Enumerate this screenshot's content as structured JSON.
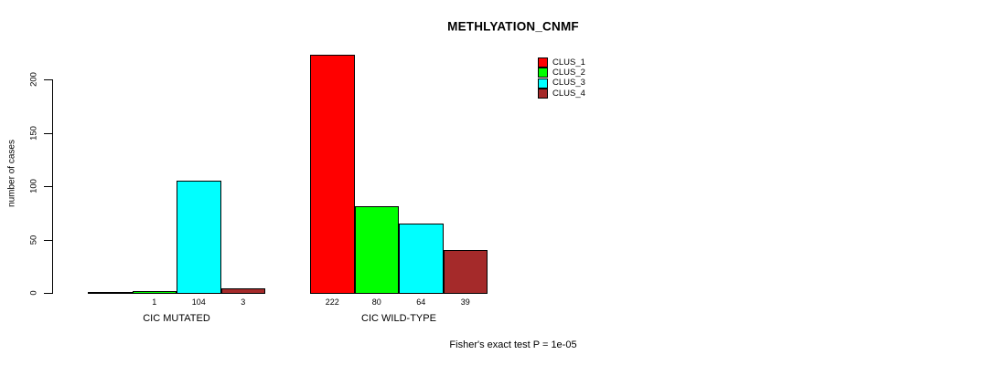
{
  "chart_data": {
    "type": "bar",
    "title": "METHLYATION_CNMF",
    "ylabel": "number of cases",
    "xlabel": "",
    "yticks": [
      0,
      50,
      100,
      150,
      200
    ],
    "ylim": [
      0,
      222
    ],
    "grid": false,
    "legend_position": "top-right",
    "categories": [
      "CIC MUTATED",
      "CIC WILD-TYPE"
    ],
    "series": [
      {
        "name": "CLUS_1",
        "color": "#FF0000",
        "values": [
          0,
          222
        ]
      },
      {
        "name": "CLUS_2",
        "color": "#00FF00",
        "values": [
          1,
          80
        ]
      },
      {
        "name": "CLUS_3",
        "color": "#00FFFF",
        "values": [
          104,
          64
        ]
      },
      {
        "name": "CLUS_4",
        "color": "#A52A2A",
        "values": [
          3,
          39
        ]
      }
    ],
    "bar_labels": [
      [
        "",
        "222"
      ],
      [
        "1",
        "80"
      ],
      [
        "104",
        "64"
      ],
      [
        "3",
        "39"
      ]
    ],
    "annotation": "Fisher's exact test P = 1e-05"
  }
}
